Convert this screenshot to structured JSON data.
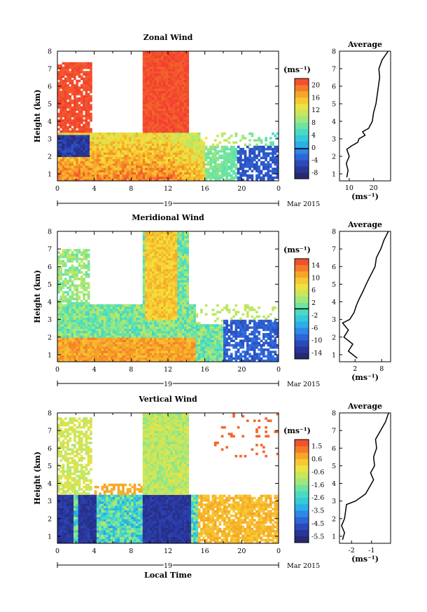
{
  "chart_data": [
    {
      "type": "heatmap",
      "title": "Zonal Wind",
      "ylabel": "Height (km)",
      "xticks": [
        "0",
        "4",
        "8",
        "12",
        "16",
        "20",
        "0"
      ],
      "yticks": [
        "1",
        "2",
        "3",
        "4",
        "5",
        "6",
        "7",
        "8"
      ],
      "day_label": "19",
      "date_label": "Mar 2015",
      "xlim_hours": [
        0,
        24
      ],
      "ylim_km": [
        0.6,
        8.0
      ],
      "colorbar": {
        "unit": "(ms⁻¹)",
        "ticks": [
          "-8",
          "-4",
          "0",
          "4",
          "8",
          "12",
          "16",
          "20"
        ],
        "range": [
          -10,
          22
        ]
      },
      "average_profile": {
        "title": "Average",
        "xlabel": "(ms⁻¹)",
        "xticks": [
          "10",
          "20"
        ],
        "xlim": [
          6,
          27
        ],
        "height_km": [
          0.8,
          1.2,
          1.6,
          2.0,
          2.4,
          2.6,
          2.8,
          3.0,
          3.2,
          3.4,
          3.6,
          4.0,
          4.5,
          5.0,
          5.5,
          6.0,
          6.5,
          7.0,
          7.5,
          8.0
        ],
        "value": [
          9.0,
          9.5,
          8.8,
          10.0,
          9.0,
          11.0,
          13.5,
          14.0,
          16.5,
          15.5,
          18.0,
          19.5,
          20.0,
          21.0,
          21.5,
          22.0,
          22.5,
          22.2,
          23.5,
          26.0
        ]
      }
    },
    {
      "type": "heatmap",
      "title": "Meridional Wind",
      "ylabel": "Height (km)",
      "xticks": [
        "0",
        "4",
        "8",
        "12",
        "16",
        "20",
        "0"
      ],
      "yticks": [
        "1",
        "2",
        "3",
        "4",
        "5",
        "6",
        "7",
        "8"
      ],
      "day_label": "19",
      "date_label": "Mar 2015",
      "xlim_hours": [
        0,
        24
      ],
      "ylim_km": [
        0.6,
        8.0
      ],
      "colorbar": {
        "unit": "(ms⁻¹)",
        "ticks": [
          "-14",
          "-10",
          "-6",
          "-2",
          "2",
          "6",
          "10",
          "14"
        ],
        "range": [
          -16,
          16
        ]
      },
      "average_profile": {
        "title": "Average",
        "xlabel": "(ms⁻¹)",
        "xticks": [
          "2",
          "8"
        ],
        "xlim": [
          -1.5,
          10.0
        ],
        "height_km": [
          0.8,
          1.2,
          1.6,
          2.0,
          2.4,
          2.8,
          3.0,
          3.4,
          3.8,
          4.2,
          4.6,
          5.0,
          5.5,
          6.0,
          6.5,
          7.0,
          7.5,
          8.0
        ],
        "value": [
          2.5,
          0.5,
          1.5,
          -0.5,
          0.5,
          -0.8,
          0.8,
          1.8,
          2.3,
          3.0,
          3.8,
          4.5,
          5.5,
          6.5,
          6.8,
          7.8,
          8.5,
          9.5
        ]
      }
    },
    {
      "type": "heatmap",
      "title": "Vertical Wind",
      "ylabel": "Height (km)",
      "xlabel": "Local Time",
      "xticks": [
        "0",
        "4",
        "8",
        "12",
        "16",
        "20",
        "0"
      ],
      "yticks": [
        "1",
        "2",
        "3",
        "4",
        "5",
        "6",
        "7",
        "8"
      ],
      "day_label": "19",
      "date_label": "Mar 2015",
      "xlim_hours": [
        0,
        24
      ],
      "ylim_km": [
        0.6,
        8.0
      ],
      "colorbar": {
        "unit": "(ms⁻¹)",
        "ticks": [
          "-5.5",
          "-4.5",
          "-3.5",
          "-2.6",
          "-1.6",
          "-0.6",
          "0.6",
          "1.5"
        ],
        "range": [
          -6.0,
          2.0
        ]
      },
      "average_profile": {
        "title": "Average",
        "xlabel": "(ms⁻¹)",
        "xticks": [
          "-2",
          "-1"
        ],
        "xlim": [
          -2.6,
          -0.05
        ],
        "height_km": [
          0.8,
          1.2,
          1.6,
          2.0,
          2.4,
          2.8,
          3.0,
          3.4,
          3.8,
          4.2,
          4.6,
          5.0,
          5.5,
          6.0,
          6.5,
          7.0,
          7.5,
          8.0
        ],
        "value": [
          -2.45,
          -2.35,
          -2.5,
          -2.35,
          -2.3,
          -2.25,
          -1.8,
          -1.3,
          -1.1,
          -0.9,
          -1.05,
          -0.85,
          -0.9,
          -0.75,
          -0.8,
          -0.55,
          -0.3,
          -0.15
        ]
      }
    }
  ]
}
